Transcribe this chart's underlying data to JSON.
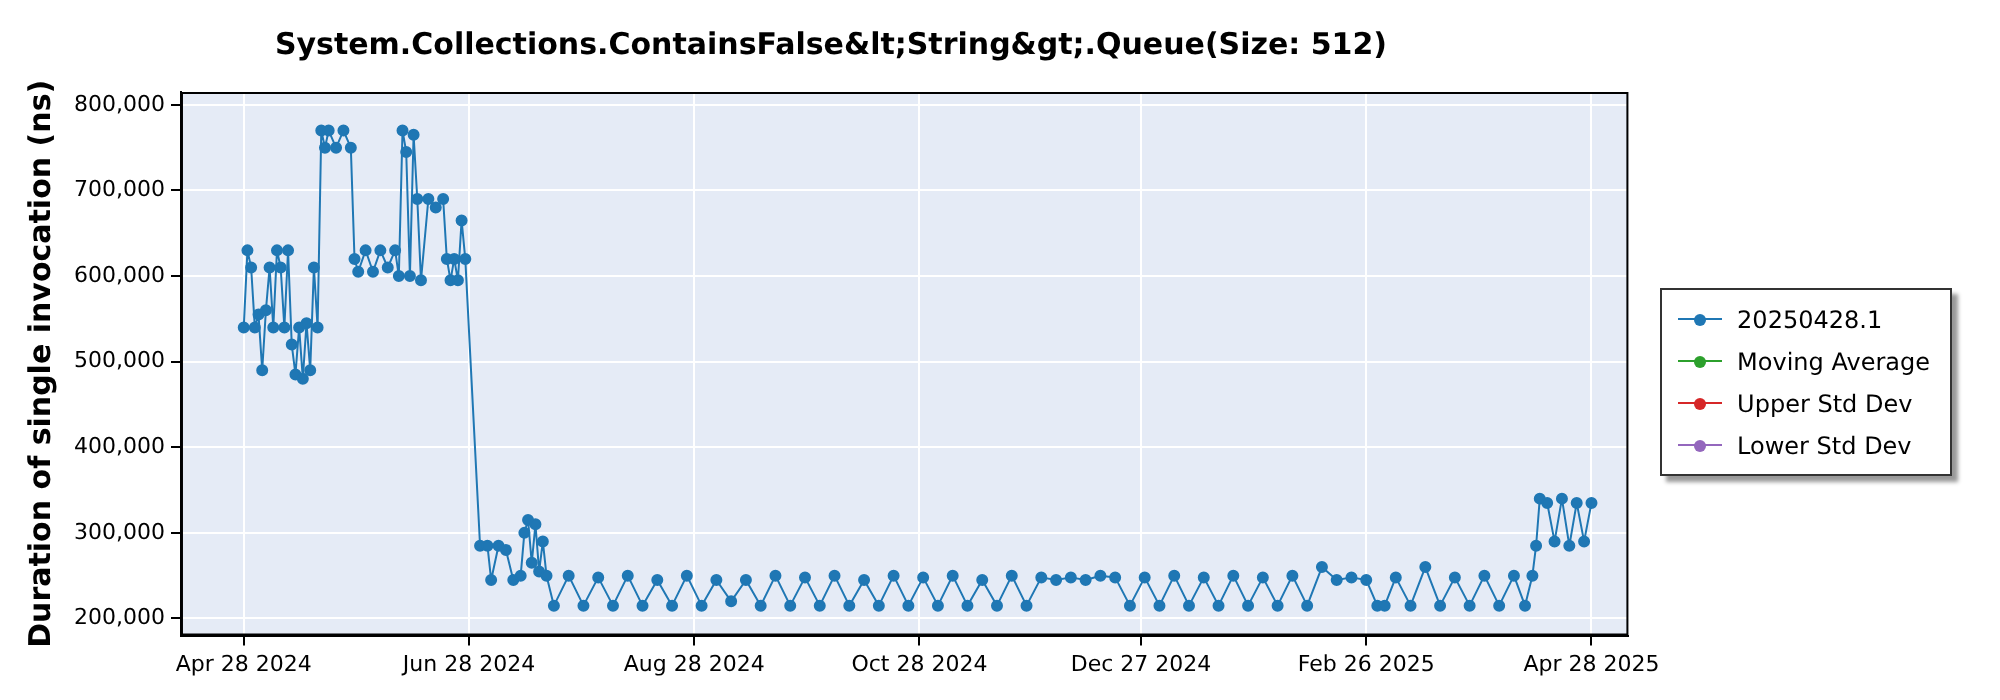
{
  "chart_data": {
    "type": "line",
    "title": "System.Collections.ContainsFalse&lt;String&gt;.Queue(Size: 512)",
    "ylabel": "Duration of single invocation (ns)",
    "xlim": [
      "2024-04-11",
      "2025-05-08"
    ],
    "xticks": [
      {
        "value": "2024-04-28",
        "label": "Apr 28 2024"
      },
      {
        "value": "2024-06-28",
        "label": "Jun 28 2024"
      },
      {
        "value": "2024-08-28",
        "label": "Aug 28 2024"
      },
      {
        "value": "2024-10-28",
        "label": "Oct 28 2024"
      },
      {
        "value": "2024-12-27",
        "label": "Dec 27 2024"
      },
      {
        "value": "2025-02-26",
        "label": "Feb 26 2025"
      },
      {
        "value": "2025-04-28",
        "label": "Apr 28 2025"
      }
    ],
    "ylim": [
      180000,
      815000
    ],
    "yticks": [
      {
        "value": 200000,
        "label": "200,000"
      },
      {
        "value": 300000,
        "label": "300,000"
      },
      {
        "value": 400000,
        "label": "400,000"
      },
      {
        "value": 500000,
        "label": "500,000"
      },
      {
        "value": 600000,
        "label": "600,000"
      },
      {
        "value": 700000,
        "label": "700,000"
      },
      {
        "value": 800000,
        "label": "800,000"
      }
    ],
    "grid": true,
    "legend": "right",
    "marker": "circle",
    "line_style": "solid",
    "series": [
      {
        "name": "20250428.1",
        "color": "#1f77b4",
        "x": [
          "2024-04-28",
          "2024-04-29",
          "2024-04-30",
          "2024-05-01",
          "2024-05-02",
          "2024-05-03",
          "2024-05-04",
          "2024-05-05",
          "2024-05-06",
          "2024-05-07",
          "2024-05-08",
          "2024-05-09",
          "2024-05-10",
          "2024-05-11",
          "2024-05-12",
          "2024-05-13",
          "2024-05-14",
          "2024-05-15",
          "2024-05-16",
          "2024-05-17",
          "2024-05-18",
          "2024-05-19",
          "2024-05-20",
          "2024-05-21",
          "2024-05-23",
          "2024-05-25",
          "2024-05-27",
          "2024-05-28",
          "2024-05-29",
          "2024-05-31",
          "2024-06-02",
          "2024-06-04",
          "2024-06-06",
          "2024-06-08",
          "2024-06-09",
          "2024-06-10",
          "2024-06-11",
          "2024-06-12",
          "2024-06-13",
          "2024-06-14",
          "2024-06-15",
          "2024-06-17",
          "2024-06-19",
          "2024-06-21",
          "2024-06-22",
          "2024-06-23",
          "2024-06-24",
          "2024-06-25",
          "2024-06-26",
          "2024-06-27",
          "2024-07-01",
          "2024-07-03",
          "2024-07-04",
          "2024-07-06",
          "2024-07-08",
          "2024-07-10",
          "2024-07-12",
          "2024-07-13",
          "2024-07-14",
          "2024-07-15",
          "2024-07-16",
          "2024-07-17",
          "2024-07-18",
          "2024-07-19",
          "2024-07-21",
          "2024-07-25",
          "2024-07-29",
          "2024-08-02",
          "2024-08-06",
          "2024-08-10",
          "2024-08-14",
          "2024-08-18",
          "2024-08-22",
          "2024-08-26",
          "2024-08-30",
          "2024-09-03",
          "2024-09-07",
          "2024-09-11",
          "2024-09-15",
          "2024-09-19",
          "2024-09-23",
          "2024-09-27",
          "2024-10-01",
          "2024-10-05",
          "2024-10-09",
          "2024-10-13",
          "2024-10-17",
          "2024-10-21",
          "2024-10-25",
          "2024-10-29",
          "2024-11-02",
          "2024-11-06",
          "2024-11-10",
          "2024-11-14",
          "2024-11-18",
          "2024-11-22",
          "2024-11-26",
          "2024-11-30",
          "2024-12-04",
          "2024-12-08",
          "2024-12-12",
          "2024-12-16",
          "2024-12-20",
          "2024-12-24",
          "2024-12-28",
          "2025-01-01",
          "2025-01-05",
          "2025-01-09",
          "2025-01-13",
          "2025-01-17",
          "2025-01-21",
          "2025-01-25",
          "2025-01-29",
          "2025-02-02",
          "2025-02-06",
          "2025-02-10",
          "2025-02-14",
          "2025-02-18",
          "2025-02-22",
          "2025-02-26",
          "2025-03-01",
          "2025-03-03",
          "2025-03-06",
          "2025-03-10",
          "2025-03-14",
          "2025-03-18",
          "2025-03-22",
          "2025-03-26",
          "2025-03-30",
          "2025-04-03",
          "2025-04-07",
          "2025-04-10",
          "2025-04-12",
          "2025-04-13",
          "2025-04-14",
          "2025-04-16",
          "2025-04-18",
          "2025-04-20",
          "2025-04-22",
          "2025-04-24",
          "2025-04-26",
          "2025-04-28"
        ],
        "values": [
          540000,
          630000,
          610000,
          540000,
          555000,
          490000,
          560000,
          610000,
          540000,
          630000,
          610000,
          540000,
          630000,
          520000,
          485000,
          540000,
          480000,
          545000,
          490000,
          610000,
          540000,
          770000,
          750000,
          770000,
          750000,
          770000,
          750000,
          620000,
          605000,
          630000,
          605000,
          630000,
          610000,
          630000,
          600000,
          770000,
          745000,
          600000,
          765000,
          690000,
          595000,
          690000,
          680000,
          690000,
          620000,
          595000,
          620000,
          595000,
          665000,
          620000,
          285000,
          285000,
          245000,
          285000,
          280000,
          245000,
          250000,
          300000,
          315000,
          265000,
          310000,
          255000,
          290000,
          250000,
          215000,
          250000,
          215000,
          248000,
          215000,
          250000,
          215000,
          245000,
          215000,
          250000,
          215000,
          245000,
          220000,
          245000,
          215000,
          250000,
          215000,
          248000,
          215000,
          250000,
          215000,
          245000,
          215000,
          250000,
          215000,
          248000,
          215000,
          250000,
          215000,
          245000,
          215000,
          250000,
          215000,
          248000,
          245000,
          248000,
          245000,
          250000,
          248000,
          215000,
          248000,
          215000,
          250000,
          215000,
          248000,
          215000,
          250000,
          215000,
          248000,
          215000,
          250000,
          215000,
          260000,
          245000,
          248000,
          245000,
          215000,
          215000,
          248000,
          215000,
          260000,
          215000,
          248000,
          215000,
          250000,
          215000,
          250000,
          215000,
          250000,
          285000,
          340000,
          335000,
          290000,
          340000,
          285000,
          335000,
          290000,
          335000
        ]
      },
      {
        "name": "Moving Average",
        "color": "#2ca02c"
      },
      {
        "name": "Upper Std Dev",
        "color": "#d62728"
      },
      {
        "name": "Lower Std Dev",
        "color": "#9467bd"
      }
    ]
  }
}
